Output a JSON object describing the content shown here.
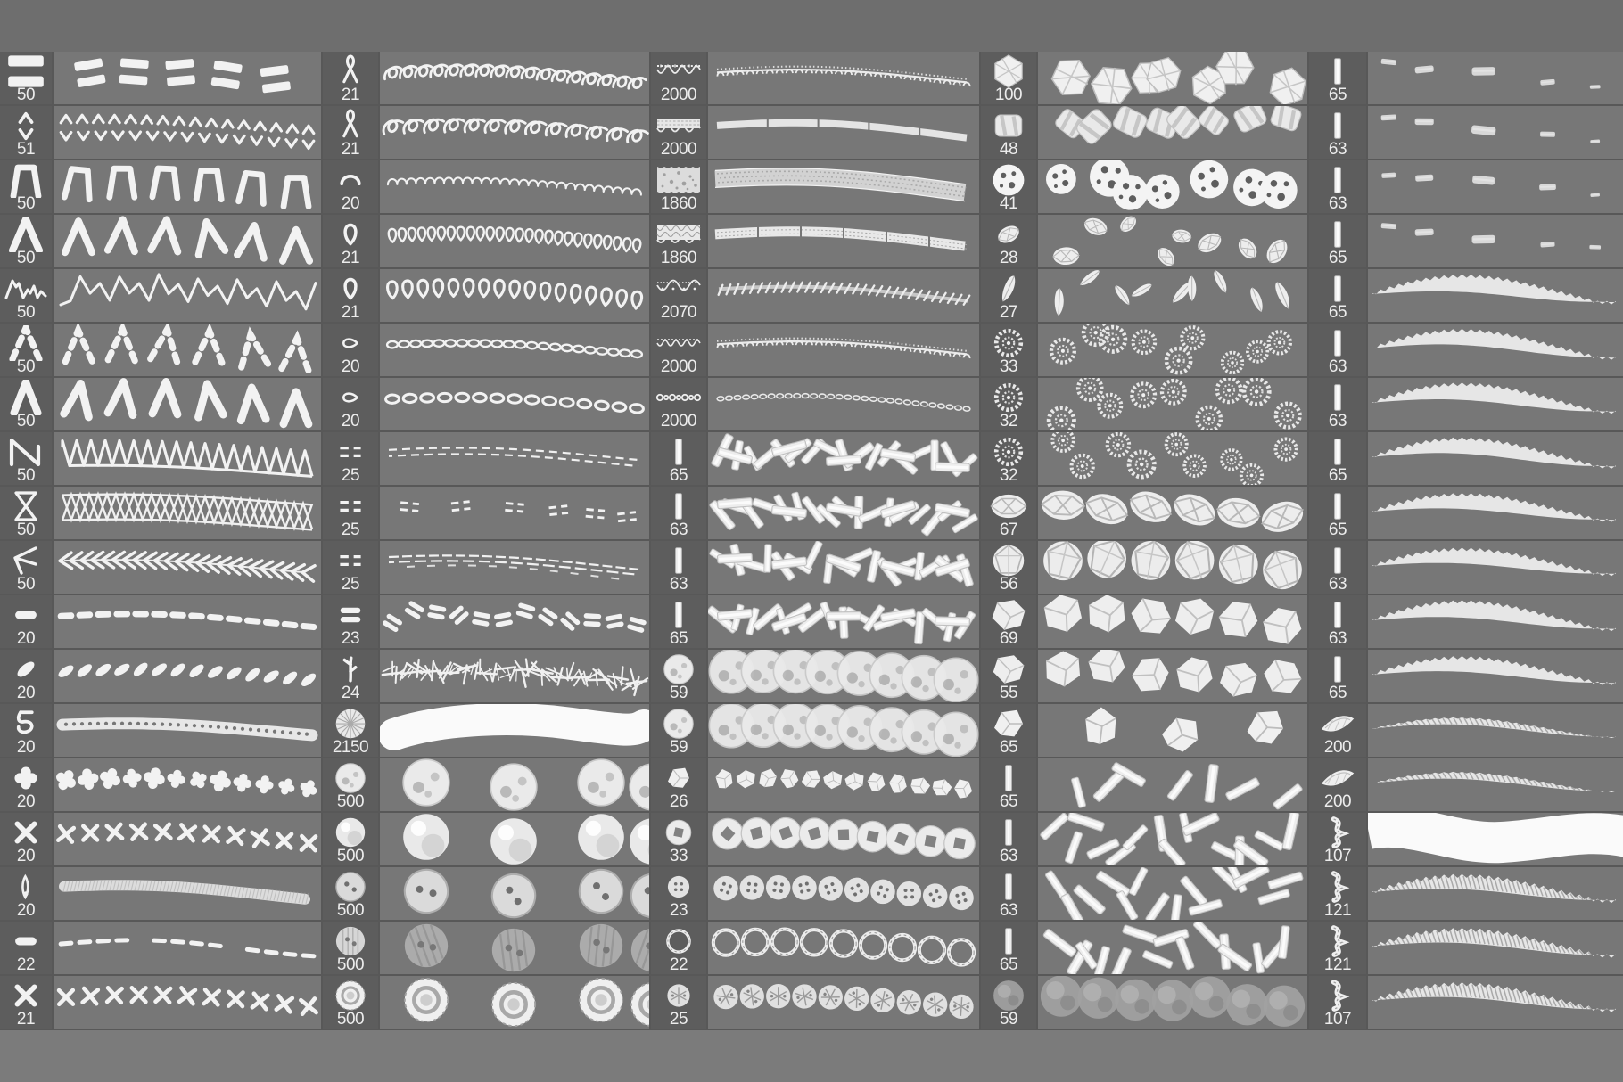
{
  "panel": {
    "bg": "#585858",
    "header_bg": "#6e6e6e",
    "footer_bg": "#7b7b7b",
    "thumb_cell_bg": "#5d5d5d",
    "preview_cell_bg": "#777777",
    "divider": "#585858",
    "label_color": "#ececec",
    "stroke_color": "#f2f2f2"
  },
  "columns": [
    {
      "rows": [
        {
          "size": "50",
          "icon": "double-bar-stitch",
          "preview": "bar-pairs"
        },
        {
          "size": "51",
          "icon": "caret-up-down-stitch",
          "preview": "caret-rows"
        },
        {
          "size": "50",
          "icon": "trapezoid-open-stitch",
          "preview": "pi-row"
        },
        {
          "size": "50",
          "icon": "triangle-open-stitch",
          "preview": "triangle-row"
        },
        {
          "size": "50",
          "icon": "mountain-zigzag-stitch",
          "preview": "mountain-line"
        },
        {
          "size": "50",
          "icon": "dashed-triangle-stitch",
          "preview": "dashed-triangle-row"
        },
        {
          "size": "50",
          "icon": "chevron-stitch",
          "preview": "chevron-row"
        },
        {
          "size": "50",
          "icon": "diagonal-zigzag-stitch",
          "preview": "zigzag-band"
        },
        {
          "size": "50",
          "icon": "hourglass-cross-stitch",
          "preview": "lattice-band"
        },
        {
          "size": "50",
          "icon": "fishbone-stitch",
          "preview": "fishbone-line"
        },
        {
          "size": "20",
          "icon": "dash-stitch",
          "preview": "dash-line"
        },
        {
          "size": "20",
          "icon": "slanted-oval-stitch",
          "preview": "oval-row"
        },
        {
          "size": "20",
          "icon": "knot-cluster-stitch",
          "preview": "braid-band"
        },
        {
          "size": "20",
          "icon": "clover-cross-stitch",
          "preview": "blob-x-row"
        },
        {
          "size": "20",
          "icon": "x-cross-stitch",
          "preview": "x-row"
        },
        {
          "size": "20",
          "icon": "vertical-stitch",
          "preview": "rope-band"
        },
        {
          "size": "22",
          "icon": "dash-stitch",
          "preview": "dash-line-thin"
        },
        {
          "size": "21",
          "icon": "x-cross-stitch",
          "preview": "x-row"
        }
      ]
    },
    {
      "rows": [
        {
          "size": "21",
          "icon": "ribbon-loop-stitch",
          "preview": "loop-chain"
        },
        {
          "size": "21",
          "icon": "ribbon-loop-stitch",
          "preview": "loop-open-row"
        },
        {
          "size": "20",
          "icon": "arc-stitch",
          "preview": "coil-small"
        },
        {
          "size": "21",
          "icon": "teardrop-outline-stitch",
          "preview": "coil-dense"
        },
        {
          "size": "21",
          "icon": "teardrop-outline-stitch",
          "preview": "teardrop-row"
        },
        {
          "size": "20",
          "icon": "small-loop-stitch",
          "preview": "chain-dense"
        },
        {
          "size": "20",
          "icon": "small-loop-stitch",
          "preview": "chain-row"
        },
        {
          "size": "25",
          "icon": "double-dash-stitch",
          "preview": "double-dash-line"
        },
        {
          "size": "25",
          "icon": "double-dash-stitch",
          "preview": "double-dash-sparse"
        },
        {
          "size": "25",
          "icon": "double-dash-stitch",
          "preview": "double-dash-dense"
        },
        {
          "size": "23",
          "icon": "double-bar-solid-stitch",
          "preview": "bar-scatter"
        },
        {
          "size": "24",
          "icon": "twig-stitch",
          "preview": "scratch-line"
        },
        {
          "size": "2150",
          "icon": "pompom-brush",
          "preview": "solid-stroke"
        },
        {
          "size": "500",
          "icon": "textured-ball",
          "preview": "ball-trio-textured"
        },
        {
          "size": "500",
          "icon": "smooth-ball",
          "preview": "ball-trio"
        },
        {
          "size": "500",
          "icon": "button-2-hole",
          "preview": "button-trio"
        },
        {
          "size": "500",
          "icon": "striped-button",
          "preview": "button-trio-faded"
        },
        {
          "size": "500",
          "icon": "metal-snap",
          "preview": "grommet-trio"
        }
      ]
    },
    {
      "rows": [
        {
          "size": "2000",
          "icon": "lace-scallop-narrow",
          "preview": "lace-picot-line"
        },
        {
          "size": "2000",
          "icon": "lace-band",
          "preview": "lace-ribbon"
        },
        {
          "size": "1860",
          "icon": "lace-floral-wide",
          "preview": "lace-wide-band"
        },
        {
          "size": "1860",
          "icon": "lace-band-double",
          "preview": "lace-segment-band"
        },
        {
          "size": "2070",
          "icon": "lace-scallop",
          "preview": "rope-twist-line"
        },
        {
          "size": "2000",
          "icon": "lace-scallop-small",
          "preview": "lace-picot-line"
        },
        {
          "size": "2000",
          "icon": "lace-chain",
          "preview": "chain-line-small"
        },
        {
          "size": "65",
          "icon": "tape-stick",
          "preview": "stick-jumble"
        },
        {
          "size": "63",
          "icon": "tape-stick",
          "preview": "stick-jumble"
        },
        {
          "size": "63",
          "icon": "tape-stick",
          "preview": "stick-jumble"
        },
        {
          "size": "65",
          "icon": "tape-stick",
          "preview": "stick-jumble"
        },
        {
          "size": "59",
          "icon": "textured-ball",
          "preview": "ball-row"
        },
        {
          "size": "59",
          "icon": "textured-ball",
          "preview": "ball-row"
        },
        {
          "size": "26",
          "icon": "crystal-nugget",
          "preview": "crystal-row"
        },
        {
          "size": "33",
          "icon": "square-hole-bead",
          "preview": "bead-row"
        },
        {
          "size": "23",
          "icon": "button-4-hole",
          "preview": "button-row"
        },
        {
          "size": "22",
          "icon": "ring-bead",
          "preview": "ring-row"
        },
        {
          "size": "25",
          "icon": "textured-button",
          "preview": "textured-button-row"
        }
      ]
    },
    {
      "rows": [
        {
          "size": "100",
          "icon": "bicone-bead",
          "preview": "hex-scatter"
        },
        {
          "size": "48",
          "icon": "cube-bead",
          "preview": "cube-scatter"
        },
        {
          "size": "41",
          "icon": "dotted-bead",
          "preview": "dotted-ball-scatter"
        },
        {
          "size": "28",
          "icon": "oval-gem",
          "preview": "gem-scatter"
        },
        {
          "size": "27",
          "icon": "marquise-bead",
          "preview": "marquise-scatter"
        },
        {
          "size": "33",
          "icon": "rosette-bead",
          "preview": "rosette-scatter"
        },
        {
          "size": "32",
          "icon": "rosette-bead",
          "preview": "rosette-scatter"
        },
        {
          "size": "32",
          "icon": "rosette-bead",
          "preview": "rosette-scatter"
        },
        {
          "size": "67",
          "icon": "oval-faceted-gem",
          "preview": "oval-gem-row"
        },
        {
          "size": "56",
          "icon": "round-faceted-gem",
          "preview": "round-gem-row"
        },
        {
          "size": "69",
          "icon": "faceted-gem",
          "preview": "gem-row"
        },
        {
          "size": "55",
          "icon": "gem-nugget",
          "preview": "nugget-row"
        },
        {
          "size": "65",
          "icon": "crystal-chunk",
          "preview": "gem-pair"
        },
        {
          "size": "65",
          "icon": "tape-stick",
          "preview": "stick-scatter-sparse"
        },
        {
          "size": "63",
          "icon": "tape-stick",
          "preview": "stick-scatter"
        },
        {
          "size": "63",
          "icon": "tape-stick",
          "preview": "stick-scatter"
        },
        {
          "size": "65",
          "icon": "tape-stick",
          "preview": "stick-scatter"
        },
        {
          "size": "59",
          "icon": "shaded-ball",
          "preview": "shaded-ball-row"
        }
      ]
    },
    {
      "rows": [
        {
          "size": "65",
          "icon": "tape-stick",
          "preview": "tape-dash-sparse"
        },
        {
          "size": "63",
          "icon": "tape-stick",
          "preview": "tape-dash-sparse"
        },
        {
          "size": "63",
          "icon": "tape-stick",
          "preview": "tape-dash-sparse"
        },
        {
          "size": "65",
          "icon": "tape-stick",
          "preview": "tape-dash-sparse"
        },
        {
          "size": "65",
          "icon": "tape-stick",
          "preview": "feather"
        },
        {
          "size": "63",
          "icon": "tape-stick",
          "preview": "feather"
        },
        {
          "size": "63",
          "icon": "tape-stick",
          "preview": "feather"
        },
        {
          "size": "65",
          "icon": "tape-stick",
          "preview": "feather"
        },
        {
          "size": "65",
          "icon": "tape-stick",
          "preview": "feather"
        },
        {
          "size": "63",
          "icon": "tape-stick",
          "preview": "feather"
        },
        {
          "size": "63",
          "icon": "tape-stick",
          "preview": "feather"
        },
        {
          "size": "65",
          "icon": "tape-stick",
          "preview": "feather"
        },
        {
          "size": "200",
          "icon": "leaf-ribbon",
          "preview": "feather-thin"
        },
        {
          "size": "200",
          "icon": "leaf-ribbon",
          "preview": "feather-thin"
        },
        {
          "size": "107",
          "icon": "twisted-ribbon",
          "preview": "solid-band"
        },
        {
          "size": "121",
          "icon": "twisted-ribbon",
          "preview": "feather-striped"
        },
        {
          "size": "121",
          "icon": "twisted-ribbon",
          "preview": "feather-striped"
        },
        {
          "size": "107",
          "icon": "twisted-ribbon",
          "preview": "feather-striped"
        }
      ]
    }
  ]
}
